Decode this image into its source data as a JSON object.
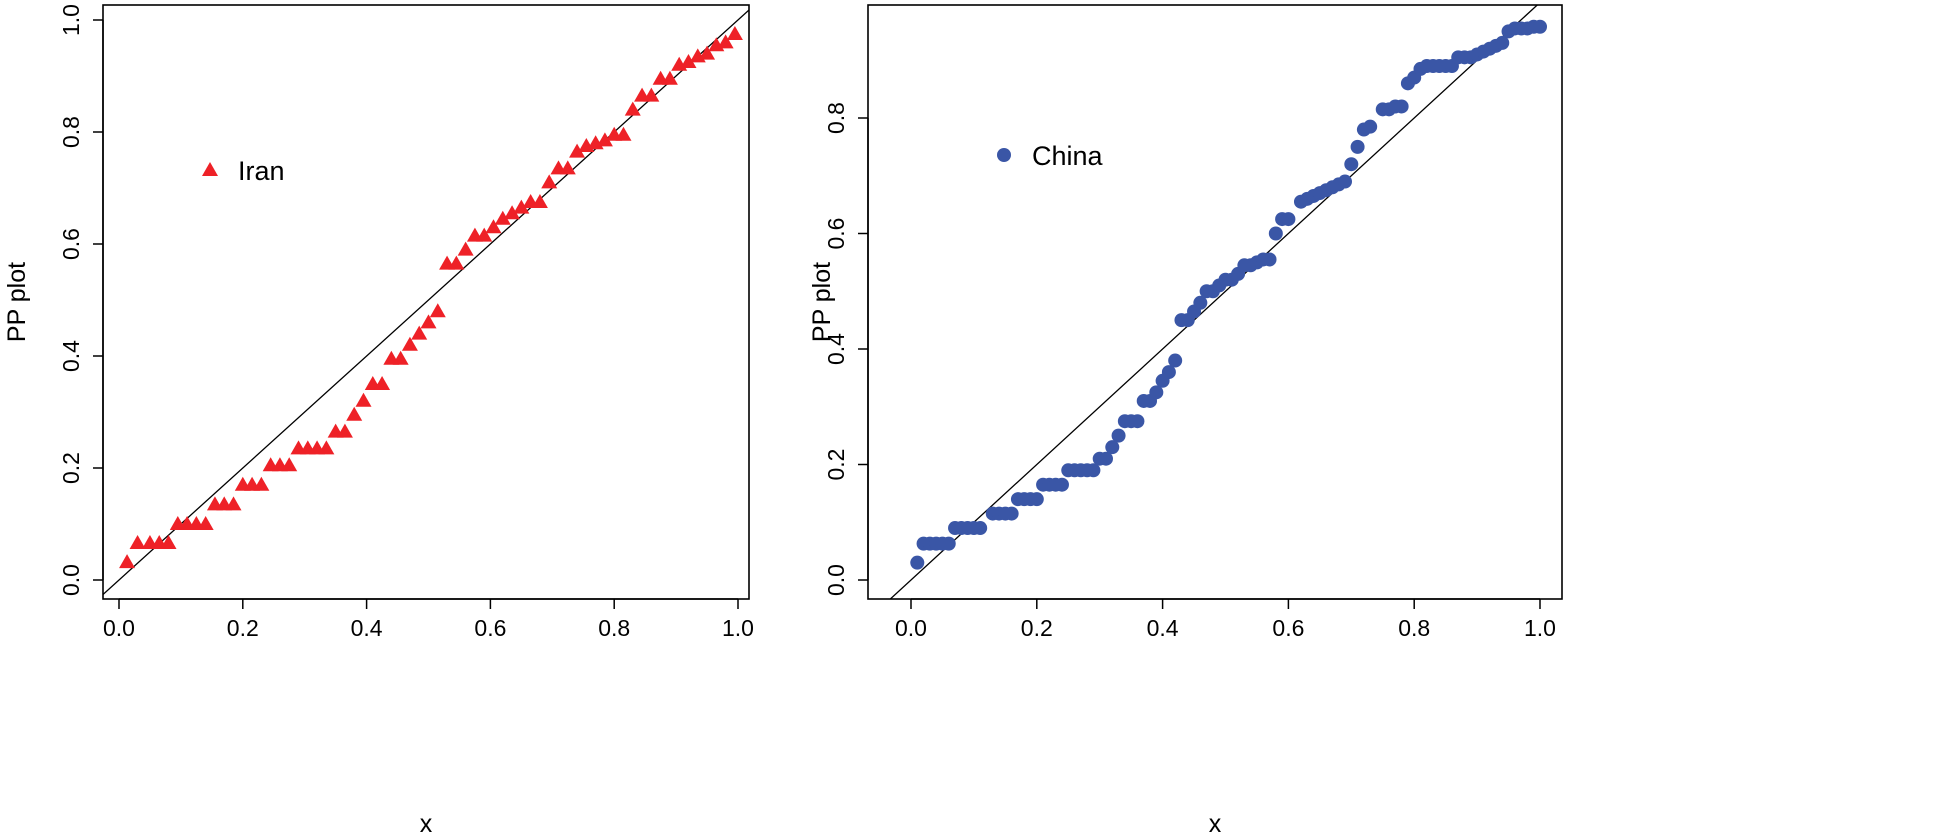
{
  "chart_data": [
    {
      "type": "scatter",
      "title": "",
      "xlabel": "x",
      "ylabel": "PP plot",
      "xlim": [
        -0.03,
        1.03
      ],
      "ylim": [
        -0.03,
        1.0
      ],
      "xticks": [
        "0.0",
        "0.2",
        "0.4",
        "0.6",
        "0.8",
        "1.0"
      ],
      "yticks": [
        "0.0",
        "0.2",
        "0.4",
        "0.6",
        "0.8",
        "1.0"
      ],
      "legend": {
        "label": "Iran",
        "placement": "upper-left",
        "marker": "triangle"
      },
      "color": "#ee2127",
      "reference_line": "y = x",
      "x": [
        0.013,
        0.03,
        0.05,
        0.065,
        0.08,
        0.095,
        0.11,
        0.125,
        0.14,
        0.155,
        0.17,
        0.185,
        0.2,
        0.215,
        0.23,
        0.245,
        0.26,
        0.275,
        0.29,
        0.305,
        0.32,
        0.335,
        0.35,
        0.365,
        0.38,
        0.395,
        0.41,
        0.425,
        0.44,
        0.455,
        0.47,
        0.485,
        0.5,
        0.515,
        0.53,
        0.545,
        0.56,
        0.575,
        0.59,
        0.605,
        0.62,
        0.635,
        0.65,
        0.665,
        0.68,
        0.695,
        0.71,
        0.725,
        0.74,
        0.755,
        0.77,
        0.785,
        0.8,
        0.815,
        0.83,
        0.845,
        0.86,
        0.875,
        0.89,
        0.905,
        0.92,
        0.935,
        0.95,
        0.965,
        0.98,
        0.995
      ],
      "y": [
        0.032,
        0.066,
        0.066,
        0.066,
        0.066,
        0.1,
        0.1,
        0.1,
        0.1,
        0.135,
        0.135,
        0.135,
        0.17,
        0.17,
        0.17,
        0.205,
        0.205,
        0.205,
        0.235,
        0.235,
        0.235,
        0.235,
        0.265,
        0.265,
        0.295,
        0.32,
        0.35,
        0.35,
        0.395,
        0.395,
        0.42,
        0.44,
        0.46,
        0.48,
        0.565,
        0.565,
        0.59,
        0.615,
        0.615,
        0.63,
        0.645,
        0.655,
        0.665,
        0.675,
        0.675,
        0.71,
        0.735,
        0.735,
        0.765,
        0.775,
        0.78,
        0.785,
        0.795,
        0.795,
        0.84,
        0.865,
        0.865,
        0.895,
        0.895,
        0.92,
        0.925,
        0.935,
        0.94,
        0.955,
        0.96,
        0.975
      ]
    },
    {
      "type": "scatter",
      "title": "",
      "xlabel": "x",
      "ylabel": "PP plot",
      "xlim": [
        -0.03,
        1.03
      ],
      "ylim": [
        -0.007,
        0.995
      ],
      "xticks": [
        "0.0",
        "0.2",
        "0.4",
        "0.6",
        "0.8",
        "1.0"
      ],
      "yticks": [
        "0.0",
        "0.2",
        "0.4",
        "0.6",
        "0.8"
      ],
      "legend": {
        "label": "China",
        "placement": "upper-left",
        "marker": "circle"
      },
      "color": "#3a56a6",
      "reference_line": "y = x",
      "x": [
        0.01,
        0.02,
        0.03,
        0.04,
        0.05,
        0.06,
        0.07,
        0.08,
        0.09,
        0.1,
        0.11,
        0.13,
        0.14,
        0.15,
        0.16,
        0.17,
        0.18,
        0.19,
        0.2,
        0.21,
        0.22,
        0.23,
        0.24,
        0.25,
        0.26,
        0.27,
        0.28,
        0.29,
        0.3,
        0.31,
        0.32,
        0.33,
        0.34,
        0.35,
        0.36,
        0.37,
        0.38,
        0.39,
        0.4,
        0.41,
        0.42,
        0.43,
        0.44,
        0.45,
        0.46,
        0.47,
        0.48,
        0.49,
        0.5,
        0.51,
        0.52,
        0.53,
        0.54,
        0.55,
        0.56,
        0.57,
        0.58,
        0.59,
        0.6,
        0.62,
        0.63,
        0.64,
        0.65,
        0.66,
        0.67,
        0.68,
        0.69,
        0.7,
        0.71,
        0.72,
        0.73,
        0.75,
        0.76,
        0.77,
        0.78,
        0.79,
        0.8,
        0.81,
        0.82,
        0.83,
        0.84,
        0.85,
        0.86,
        0.87,
        0.88,
        0.89,
        0.9,
        0.91,
        0.92,
        0.93,
        0.94,
        0.95,
        0.96,
        0.97,
        0.98,
        0.99,
        1.0
      ],
      "y": [
        0.03,
        0.063,
        0.063,
        0.063,
        0.063,
        0.063,
        0.09,
        0.09,
        0.09,
        0.09,
        0.09,
        0.115,
        0.115,
        0.115,
        0.115,
        0.14,
        0.14,
        0.14,
        0.14,
        0.165,
        0.165,
        0.165,
        0.165,
        0.19,
        0.19,
        0.19,
        0.19,
        0.19,
        0.21,
        0.21,
        0.23,
        0.25,
        0.275,
        0.275,
        0.275,
        0.31,
        0.31,
        0.325,
        0.345,
        0.36,
        0.38,
        0.45,
        0.45,
        0.465,
        0.48,
        0.5,
        0.5,
        0.51,
        0.52,
        0.52,
        0.53,
        0.545,
        0.545,
        0.55,
        0.555,
        0.555,
        0.6,
        0.625,
        0.625,
        0.655,
        0.66,
        0.665,
        0.67,
        0.675,
        0.68,
        0.685,
        0.69,
        0.72,
        0.75,
        0.78,
        0.785,
        0.815,
        0.815,
        0.82,
        0.82,
        0.86,
        0.87,
        0.885,
        0.89,
        0.89,
        0.89,
        0.89,
        0.89,
        0.905,
        0.905,
        0.905,
        0.91,
        0.915,
        0.92,
        0.925,
        0.93,
        0.95,
        0.955,
        0.955,
        0.955,
        0.958,
        0.958
      ]
    }
  ]
}
